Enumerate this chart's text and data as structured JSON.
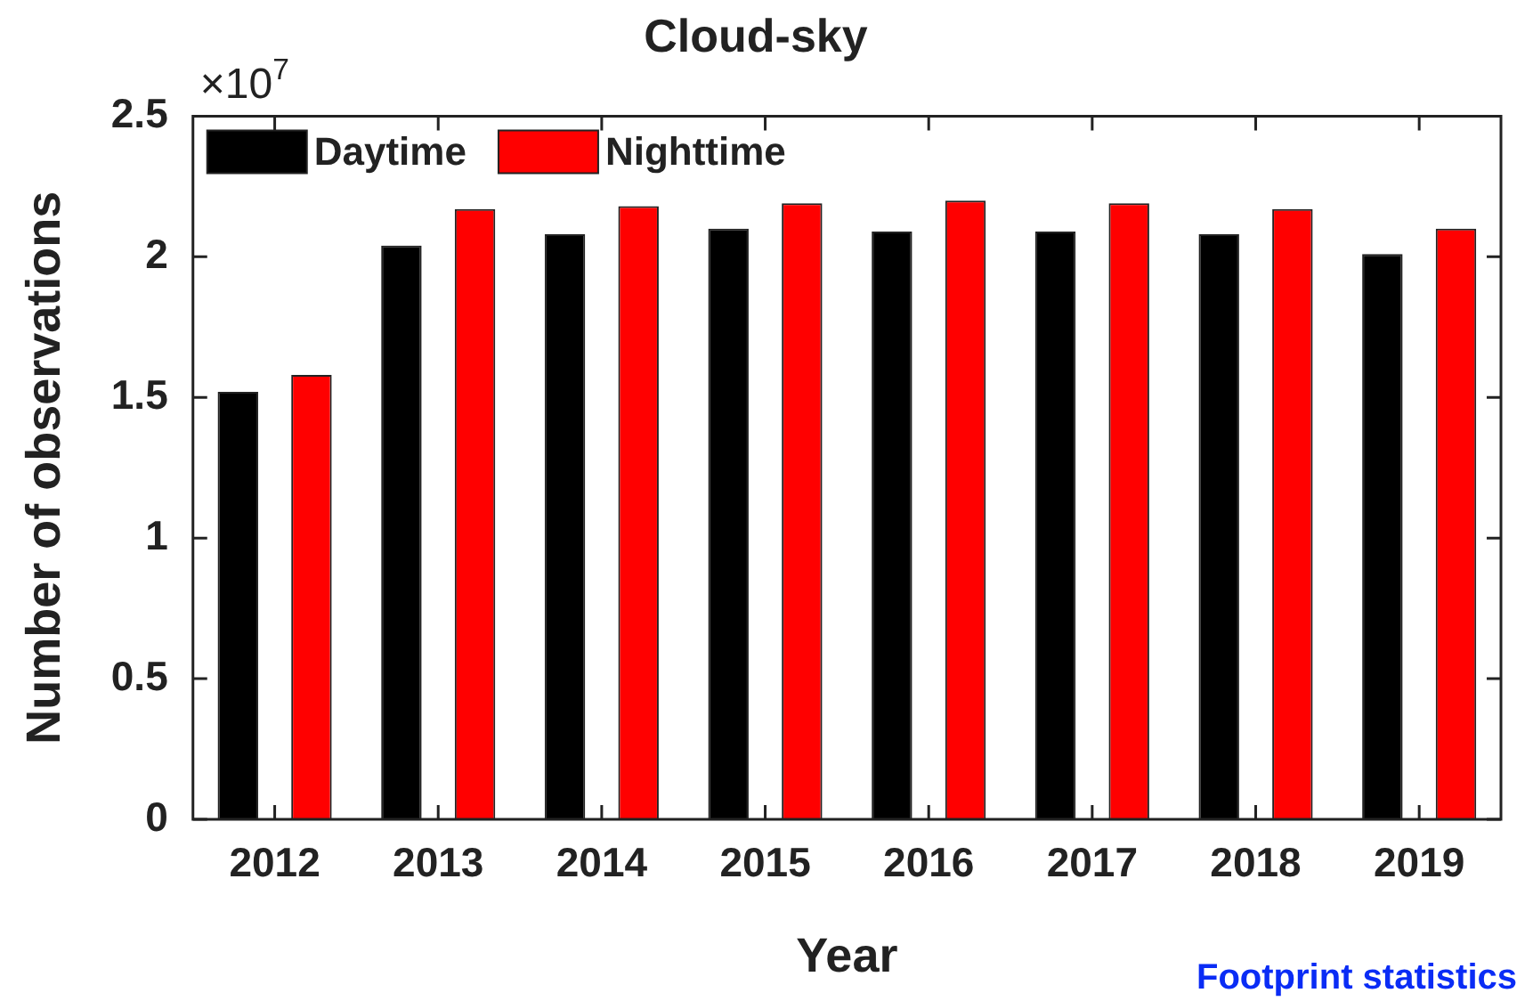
{
  "chart_data": {
    "type": "bar",
    "title": "Cloud-sky",
    "xlabel": "Year",
    "ylabel": "Number of observations",
    "categories": [
      "2012",
      "2013",
      "2014",
      "2015",
      "2016",
      "2017",
      "2018",
      "2019"
    ],
    "series": [
      {
        "name": "Daytime",
        "color": "#000000",
        "values": [
          1.52,
          2.04,
          2.08,
          2.1,
          2.09,
          2.09,
          2.08,
          2.01
        ]
      },
      {
        "name": "Nighttime",
        "color": "#ff0000",
        "values": [
          1.58,
          2.17,
          2.18,
          2.19,
          2.2,
          2.19,
          2.17,
          2.1
        ]
      }
    ],
    "ylim": [
      0,
      2.5
    ],
    "yticks": [
      0,
      0.5,
      1,
      1.5,
      2,
      2.5
    ],
    "grid": false,
    "legend": "top left",
    "annotations": [
      "×10$^{7}$",
      "Footprint statistics"
    ]
  }
}
